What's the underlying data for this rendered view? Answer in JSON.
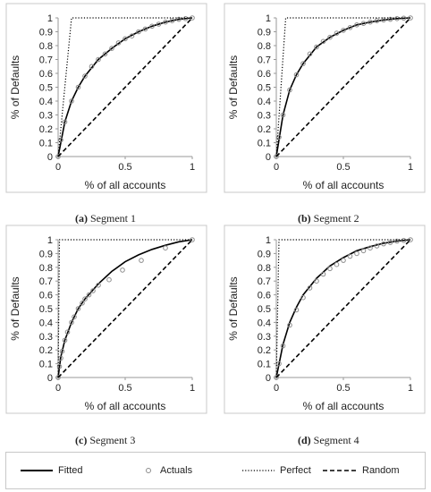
{
  "captions": [
    {
      "letter": "(a)",
      "text": " Segment 1"
    },
    {
      "letter": "(b)",
      "text": " Segment 2"
    },
    {
      "letter": "(c)",
      "text": " Segment 3"
    },
    {
      "letter": "(d)",
      "text": " Segment 4"
    }
  ],
  "legend": {
    "fitted": "Fitted",
    "actuals": "Actuals",
    "perfect": "Perfect",
    "random": "Random"
  },
  "colors": {
    "fitted": "#000000",
    "actuals": "#8c8c8c",
    "perfect": "#000000",
    "random": "#000000",
    "axis": "#999999"
  },
  "chart_data": [
    {
      "type": "line",
      "panel": "Segment 1",
      "xlabel": "% of all accounts",
      "ylabel": "% of Defaults",
      "xlim": [
        0,
        1
      ],
      "ylim": [
        0,
        1
      ],
      "xticks": [
        "0",
        "0.5",
        "1"
      ],
      "yticks": [
        "0",
        "0.1",
        "0.2",
        "0.3",
        "0.4",
        "0.5",
        "0.6",
        "0.7",
        "0.8",
        "0.9",
        "1"
      ],
      "grid": false,
      "series": [
        {
          "name": "Fitted",
          "x": [
            0,
            0.05,
            0.1,
            0.15,
            0.2,
            0.3,
            0.4,
            0.5,
            0.6,
            0.7,
            0.8,
            0.9,
            1.0
          ],
          "y": [
            0,
            0.25,
            0.4,
            0.5,
            0.58,
            0.7,
            0.78,
            0.85,
            0.9,
            0.94,
            0.97,
            0.99,
            1.0
          ]
        },
        {
          "name": "Actuals",
          "x": [
            0,
            0.02,
            0.05,
            0.1,
            0.15,
            0.2,
            0.25,
            0.3,
            0.35,
            0.4,
            0.45,
            0.5,
            0.55,
            0.6,
            0.65,
            0.7,
            0.75,
            0.8,
            0.85,
            0.9,
            0.95,
            1.0
          ],
          "y": [
            0,
            0.12,
            0.25,
            0.4,
            0.5,
            0.58,
            0.65,
            0.7,
            0.74,
            0.78,
            0.82,
            0.85,
            0.87,
            0.9,
            0.92,
            0.94,
            0.955,
            0.97,
            0.98,
            0.99,
            0.995,
            1.0
          ]
        },
        {
          "name": "Perfect",
          "x": [
            0,
            0.1,
            1
          ],
          "y": [
            0,
            1,
            1
          ]
        },
        {
          "name": "Random",
          "x": [
            0,
            1
          ],
          "y": [
            0,
            1
          ]
        }
      ]
    },
    {
      "type": "line",
      "panel": "Segment 2",
      "xlabel": "% of all accounts",
      "ylabel": "% of Defaults",
      "xlim": [
        0,
        1
      ],
      "ylim": [
        0,
        1
      ],
      "xticks": [
        "0",
        "0.5",
        "1"
      ],
      "yticks": [
        "0",
        "0.1",
        "0.2",
        "0.3",
        "0.4",
        "0.5",
        "0.6",
        "0.7",
        "0.8",
        "0.9",
        "1"
      ],
      "grid": false,
      "series": [
        {
          "name": "Fitted",
          "x": [
            0,
            0.05,
            0.1,
            0.15,
            0.2,
            0.3,
            0.4,
            0.5,
            0.6,
            0.7,
            0.8,
            0.9,
            1.0
          ],
          "y": [
            0,
            0.3,
            0.48,
            0.59,
            0.67,
            0.79,
            0.86,
            0.91,
            0.95,
            0.97,
            0.985,
            0.995,
            1.0
          ]
        },
        {
          "name": "Actuals",
          "x": [
            0,
            0.02,
            0.05,
            0.1,
            0.15,
            0.2,
            0.25,
            0.3,
            0.35,
            0.4,
            0.45,
            0.5,
            0.55,
            0.6,
            0.65,
            0.7,
            0.75,
            0.8,
            0.85,
            0.9,
            0.95,
            1.0
          ],
          "y": [
            0,
            0.14,
            0.3,
            0.48,
            0.59,
            0.67,
            0.74,
            0.79,
            0.83,
            0.86,
            0.89,
            0.91,
            0.93,
            0.95,
            0.96,
            0.97,
            0.98,
            0.985,
            0.99,
            0.995,
            0.998,
            1.0
          ]
        },
        {
          "name": "Perfect",
          "x": [
            0,
            0.07,
            1
          ],
          "y": [
            0,
            1,
            1
          ]
        },
        {
          "name": "Random",
          "x": [
            0,
            1
          ],
          "y": [
            0,
            1
          ]
        }
      ]
    },
    {
      "type": "line",
      "panel": "Segment 3",
      "xlabel": "% of all accounts",
      "ylabel": "% of Defaults",
      "xlim": [
        0,
        1
      ],
      "ylim": [
        0,
        1
      ],
      "xticks": [
        "0",
        "0.5",
        "1"
      ],
      "yticks": [
        "0",
        "0.1",
        "0.2",
        "0.3",
        "0.4",
        "0.5",
        "0.6",
        "0.7",
        "0.8",
        "0.9",
        "1"
      ],
      "grid": false,
      "series": [
        {
          "name": "Fitted",
          "x": [
            0,
            0.02,
            0.05,
            0.1,
            0.15,
            0.2,
            0.3,
            0.4,
            0.5,
            0.6,
            0.7,
            0.8,
            0.9,
            1.0
          ],
          "y": [
            0,
            0.15,
            0.27,
            0.4,
            0.5,
            0.57,
            0.68,
            0.77,
            0.84,
            0.89,
            0.93,
            0.96,
            0.985,
            1.0
          ]
        },
        {
          "name": "Actuals",
          "x": [
            0,
            0.01,
            0.02,
            0.03,
            0.05,
            0.07,
            0.1,
            0.12,
            0.15,
            0.18,
            0.2,
            0.23,
            0.26,
            0.3,
            0.38,
            0.48,
            0.62,
            0.8,
            1.0
          ],
          "y": [
            0,
            0.08,
            0.14,
            0.19,
            0.27,
            0.33,
            0.4,
            0.44,
            0.5,
            0.54,
            0.57,
            0.6,
            0.63,
            0.67,
            0.71,
            0.78,
            0.85,
            0.94,
            1.0
          ]
        },
        {
          "name": "Perfect",
          "x": [
            0,
            0.01,
            1
          ],
          "y": [
            0,
            1,
            1
          ]
        },
        {
          "name": "Random",
          "x": [
            0,
            1
          ],
          "y": [
            0,
            1
          ]
        }
      ]
    },
    {
      "type": "line",
      "panel": "Segment 4",
      "xlabel": "% of all accounts",
      "ylabel": "% of Defaults",
      "xlim": [
        0,
        1
      ],
      "ylim": [
        0,
        1
      ],
      "xticks": [
        "0",
        "0.5",
        "1"
      ],
      "yticks": [
        "0",
        "0.1",
        "0.2",
        "0.3",
        "0.4",
        "0.5",
        "0.6",
        "0.7",
        "0.8",
        "0.9",
        "1"
      ],
      "grid": false,
      "series": [
        {
          "name": "Fitted",
          "x": [
            0,
            0.05,
            0.1,
            0.15,
            0.2,
            0.3,
            0.4,
            0.5,
            0.6,
            0.7,
            0.8,
            0.9,
            1.0
          ],
          "y": [
            0,
            0.24,
            0.4,
            0.51,
            0.6,
            0.72,
            0.81,
            0.87,
            0.92,
            0.95,
            0.975,
            0.99,
            1.0
          ]
        },
        {
          "name": "Actuals",
          "x": [
            0,
            0.02,
            0.05,
            0.1,
            0.15,
            0.2,
            0.25,
            0.3,
            0.35,
            0.4,
            0.45,
            0.5,
            0.55,
            0.6,
            0.65,
            0.7,
            0.75,
            0.8,
            0.85,
            0.9,
            0.95,
            1.0
          ],
          "y": [
            0,
            0.1,
            0.23,
            0.38,
            0.49,
            0.58,
            0.65,
            0.7,
            0.75,
            0.79,
            0.82,
            0.85,
            0.88,
            0.9,
            0.92,
            0.94,
            0.955,
            0.97,
            0.98,
            0.99,
            0.995,
            1.0
          ]
        },
        {
          "name": "Perfect",
          "x": [
            0,
            0.02,
            1
          ],
          "y": [
            0,
            1,
            1
          ]
        },
        {
          "name": "Random",
          "x": [
            0,
            1
          ],
          "y": [
            0,
            1
          ]
        }
      ]
    }
  ]
}
